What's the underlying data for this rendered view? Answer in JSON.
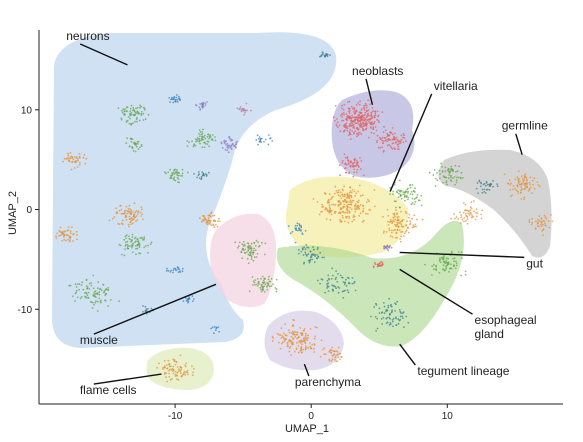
{
  "chart_data": {
    "type": "scatter",
    "title": "",
    "xlabel": "UMAP_1",
    "ylabel": "UMAP_2",
    "xlim": [
      -20,
      18.5
    ],
    "ylim": [
      -19.5,
      18
    ],
    "x_ticks": [
      -10,
      0,
      10
    ],
    "y_ticks": [
      -10,
      0,
      10
    ],
    "grid": false,
    "legend": "none",
    "clusters": [
      {
        "label": "neurons",
        "color": "#b8d3ea",
        "x": -9.5,
        "y": 4,
        "label_pos": [
          -18,
          17
        ],
        "line_to": [
          -13.5,
          14.5
        ]
      },
      {
        "label": "neoblasts",
        "color": "#9fa0d2",
        "x": 4.5,
        "y": 7,
        "label_pos": [
          3,
          13.5
        ],
        "line_to": [
          4.5,
          10.5
        ]
      },
      {
        "label": "vitellaria",
        "color": "#f1ea8e",
        "x": 6.5,
        "y": 1,
        "label_pos": [
          9,
          12
        ],
        "line_to": [
          5.8,
          1.8
        ]
      },
      {
        "label": "germline",
        "color": "#bcbcbc",
        "x": 14.5,
        "y": 1,
        "label_pos": [
          14,
          8
        ],
        "line_to": [
          15.5,
          5.5
        ]
      },
      {
        "label": "gut",
        "color": "#8a7fd2",
        "x": 5.5,
        "y": -3.8,
        "label_pos": [
          15.8,
          -5.8
        ],
        "line_to": [
          6.5,
          -4.3
        ]
      },
      {
        "label": "esophageal gland",
        "color": "#f29595",
        "x": 5,
        "y": -5.5,
        "label_pos": [
          12,
          -11.5
        ],
        "line_to": [
          6.5,
          -6
        ]
      },
      {
        "label": "muscle",
        "color": "#f4d3e0",
        "x": -4,
        "y": -5,
        "label_pos": [
          -17,
          -13.5
        ],
        "line_to": [
          -7,
          -7.5
        ]
      },
      {
        "label": "flame cells",
        "color": "#e6efc8",
        "x": -9.5,
        "y": -16,
        "label_pos": [
          -17,
          -18.5
        ],
        "line_to": [
          -11,
          -16.5
        ]
      },
      {
        "label": "parenchyma",
        "color": "#d8d0e6",
        "x": -1,
        "y": -13,
        "label_pos": [
          -1.2,
          -17.7
        ],
        "line_to": [
          -0.5,
          -15.5
        ]
      },
      {
        "label": "tegument lineage",
        "color": "#a7d488",
        "x": 6,
        "y": -6,
        "label_pos": [
          7.8,
          -16.6
        ],
        "line_to": [
          6.5,
          -13.5
        ]
      }
    ]
  }
}
